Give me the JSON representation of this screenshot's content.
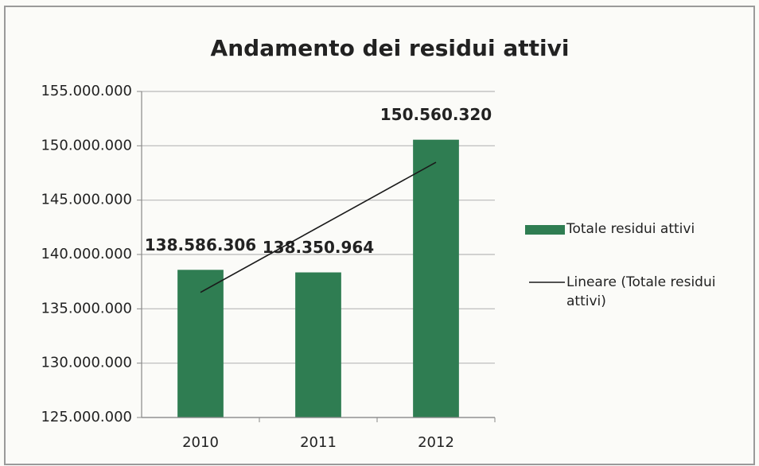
{
  "chart_data": {
    "type": "bar",
    "title": "Andamento dei residui attivi",
    "categories": [
      "2010",
      "2011",
      "2012"
    ],
    "series": [
      {
        "name": "Totale residui attivi",
        "color": "#2f7d52",
        "values": [
          138586306,
          138350964,
          150560320
        ],
        "value_labels": [
          "138.586.306",
          "138.350.964",
          "150.560.320"
        ]
      }
    ],
    "trendline": {
      "name": "Lineare (Totale residui attivi)",
      "type": "linear",
      "color": "#1a1a1a"
    },
    "ylim": [
      125000000,
      155000000
    ],
    "yticks": [
      {
        "value": 125000000,
        "label": "125.000.000"
      },
      {
        "value": 130000000,
        "label": "130.000.000"
      },
      {
        "value": 135000000,
        "label": "135.000.000"
      },
      {
        "value": 140000000,
        "label": "140.000.000"
      },
      {
        "value": 145000000,
        "label": "145.000.000"
      },
      {
        "value": 150000000,
        "label": "150.000.000"
      },
      {
        "value": 155000000,
        "label": "155.000.000"
      }
    ],
    "grid": true,
    "legend": "right"
  }
}
